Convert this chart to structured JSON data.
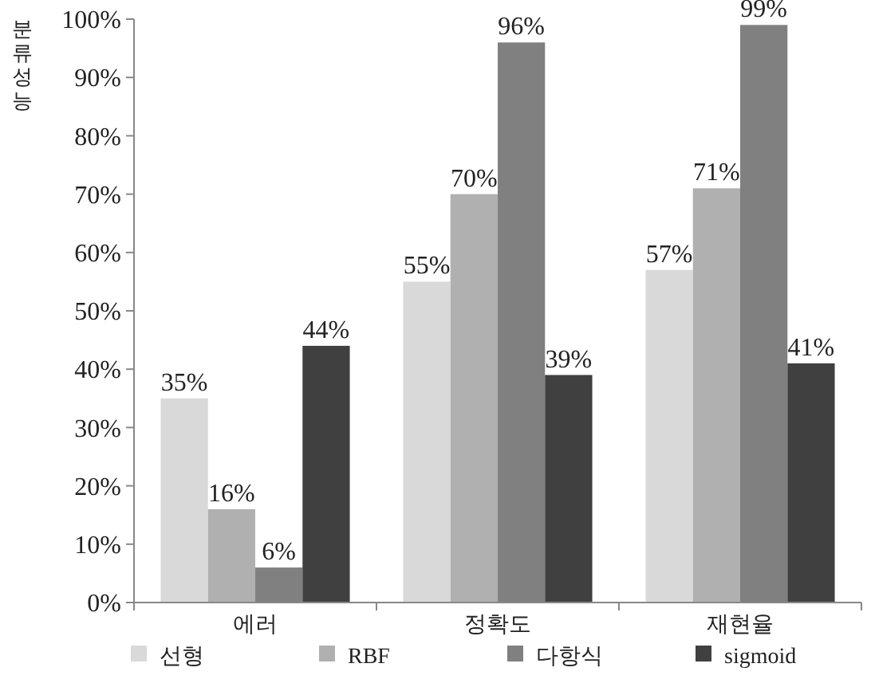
{
  "chart_data": {
    "type": "bar",
    "ylabel": "분류성능",
    "categories": [
      "에러",
      "정확도",
      "재현율"
    ],
    "series": [
      {
        "name": "선형",
        "color": "#d9d9d9",
        "values": [
          35,
          55,
          57
        ],
        "value_labels": [
          "35%",
          "55%",
          "57%"
        ]
      },
      {
        "name": "RBF",
        "color": "#b0b0b0",
        "values": [
          16,
          70,
          71
        ],
        "value_labels": [
          "16%",
          "70%",
          "71%"
        ]
      },
      {
        "name": "다항식",
        "color": "#808080",
        "values": [
          6,
          96,
          99
        ],
        "value_labels": [
          "6%",
          "96%",
          "99%"
        ]
      },
      {
        "name": "sigmoid",
        "color": "#404040",
        "values": [
          44,
          39,
          41
        ],
        "value_labels": [
          "44%",
          "39%",
          "41%"
        ]
      }
    ],
    "ylim": [
      0,
      100
    ],
    "yticks": [
      {
        "value": 0,
        "label": "0%"
      },
      {
        "value": 10,
        "label": "10%"
      },
      {
        "value": 20,
        "label": "20%"
      },
      {
        "value": 30,
        "label": "30%"
      },
      {
        "value": 40,
        "label": "40%"
      },
      {
        "value": 50,
        "label": "50%"
      },
      {
        "value": 60,
        "label": "60%"
      },
      {
        "value": 70,
        "label": "70%"
      },
      {
        "value": 80,
        "label": "80%"
      },
      {
        "value": 90,
        "label": "90%"
      },
      {
        "value": 100,
        "label": "100%"
      }
    ],
    "grid": false,
    "legend": "bottom"
  }
}
